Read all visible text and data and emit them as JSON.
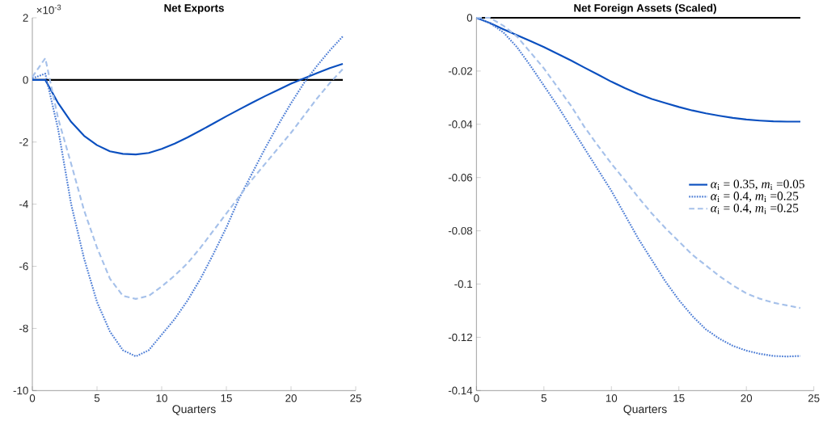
{
  "chart_data": [
    {
      "type": "line",
      "title": "Net Exports",
      "xlabel": "Quarters",
      "annotations": [
        "×10$^{-3}$"
      ],
      "x": [
        0,
        1,
        2,
        3,
        4,
        5,
        6,
        7,
        8,
        9,
        10,
        11,
        12,
        13,
        14,
        15,
        16,
        17,
        18,
        19,
        20,
        21,
        22,
        23,
        24
      ],
      "xlim": [
        0,
        25
      ],
      "xticks": [
        0,
        5,
        10,
        15,
        20,
        25
      ],
      "ylim": [
        -10,
        2
      ],
      "yticks": [
        -10,
        -8,
        -6,
        -4,
        -2,
        0,
        2
      ],
      "ref_lines": [
        {
          "axis": "y",
          "value": 0,
          "color": "#000000"
        }
      ],
      "legend": false,
      "series": [
        {
          "color": "#0a4fbf",
          "line_style": "solid",
          "values": [
            0,
            0,
            -0.75,
            -1.35,
            -1.8,
            -2.1,
            -2.3,
            -2.38,
            -2.4,
            -2.35,
            -2.22,
            -2.05,
            -1.85,
            -1.63,
            -1.4,
            -1.17,
            -0.95,
            -0.73,
            -0.52,
            -0.32,
            -0.12,
            0.05,
            0.22,
            0.38,
            0.52
          ]
        },
        {
          "color": "#4f7fd6",
          "line_style": "dotted",
          "values": [
            0.05,
            0.2,
            -1.6,
            -4.0,
            -5.75,
            -7.15,
            -8.1,
            -8.7,
            -8.9,
            -8.7,
            -8.2,
            -7.7,
            -7.1,
            -6.4,
            -5.6,
            -4.75,
            -3.8,
            -3.0,
            -2.2,
            -1.45,
            -0.75,
            -0.1,
            0.45,
            0.95,
            1.4
          ]
        },
        {
          "color": "#a6c1ea",
          "line_style": "dashed",
          "values": [
            0.1,
            0.7,
            -1.25,
            -2.7,
            -4.2,
            -5.4,
            -6.4,
            -6.95,
            -7.05,
            -6.95,
            -6.65,
            -6.3,
            -5.9,
            -5.4,
            -4.85,
            -4.3,
            -3.75,
            -3.2,
            -2.7,
            -2.2,
            -1.7,
            -1.15,
            -0.6,
            -0.1,
            0.35
          ]
        }
      ]
    },
    {
      "type": "line",
      "title": "Net Foreign Assets (Scaled)",
      "xlabel": "Quarters",
      "x": [
        0,
        1,
        2,
        3,
        4,
        5,
        6,
        7,
        8,
        9,
        10,
        11,
        12,
        13,
        14,
        15,
        16,
        17,
        18,
        19,
        20,
        21,
        22,
        23,
        24
      ],
      "xlim": [
        0,
        25
      ],
      "xticks": [
        0,
        5,
        10,
        15,
        20,
        25
      ],
      "ylim": [
        -0.14,
        0
      ],
      "yticks": [
        -0.14,
        -0.12,
        -0.1,
        -0.08,
        -0.06,
        -0.04,
        -0.02,
        0
      ],
      "ref_lines": [
        {
          "axis": "y",
          "value": 0,
          "color": "#000000"
        }
      ],
      "legend": "right",
      "series": [
        {
          "name": "*α*$_{i}$ = 0.35, *m*$_{i}$ =0.05",
          "color": "#0a4fbf",
          "line_style": "solid",
          "values": [
            0,
            -0.002,
            -0.0043,
            -0.0065,
            -0.0087,
            -0.011,
            -0.0135,
            -0.016,
            -0.0187,
            -0.0213,
            -0.024,
            -0.0264,
            -0.0286,
            -0.0305,
            -0.032,
            -0.0335,
            -0.0348,
            -0.0359,
            -0.0368,
            -0.0376,
            -0.0382,
            -0.0386,
            -0.0389,
            -0.039,
            -0.039
          ]
        },
        {
          "name": "*α*$_{i}$ = 0.4, *m*$_{i}$ =0.25",
          "color": "#4f7fd6",
          "line_style": "dotted",
          "values": [
            0,
            -0.002,
            -0.0055,
            -0.011,
            -0.018,
            -0.0255,
            -0.033,
            -0.041,
            -0.049,
            -0.057,
            -0.065,
            -0.074,
            -0.083,
            -0.091,
            -0.099,
            -0.106,
            -0.112,
            -0.117,
            -0.1205,
            -0.1232,
            -0.125,
            -0.1262,
            -0.127,
            -0.1272,
            -0.127
          ]
        },
        {
          "name": "*α*$_{i}$ = 0.4, *m*$_{i}$ =0.25",
          "color": "#a6c1ea",
          "line_style": "dashed",
          "values": [
            0,
            0,
            -0.003,
            -0.007,
            -0.013,
            -0.019,
            -0.026,
            -0.033,
            -0.041,
            -0.048,
            -0.0548,
            -0.061,
            -0.0675,
            -0.0735,
            -0.079,
            -0.084,
            -0.089,
            -0.093,
            -0.097,
            -0.1005,
            -0.1035,
            -0.1055,
            -0.107,
            -0.108,
            -0.109
          ]
        }
      ]
    }
  ]
}
